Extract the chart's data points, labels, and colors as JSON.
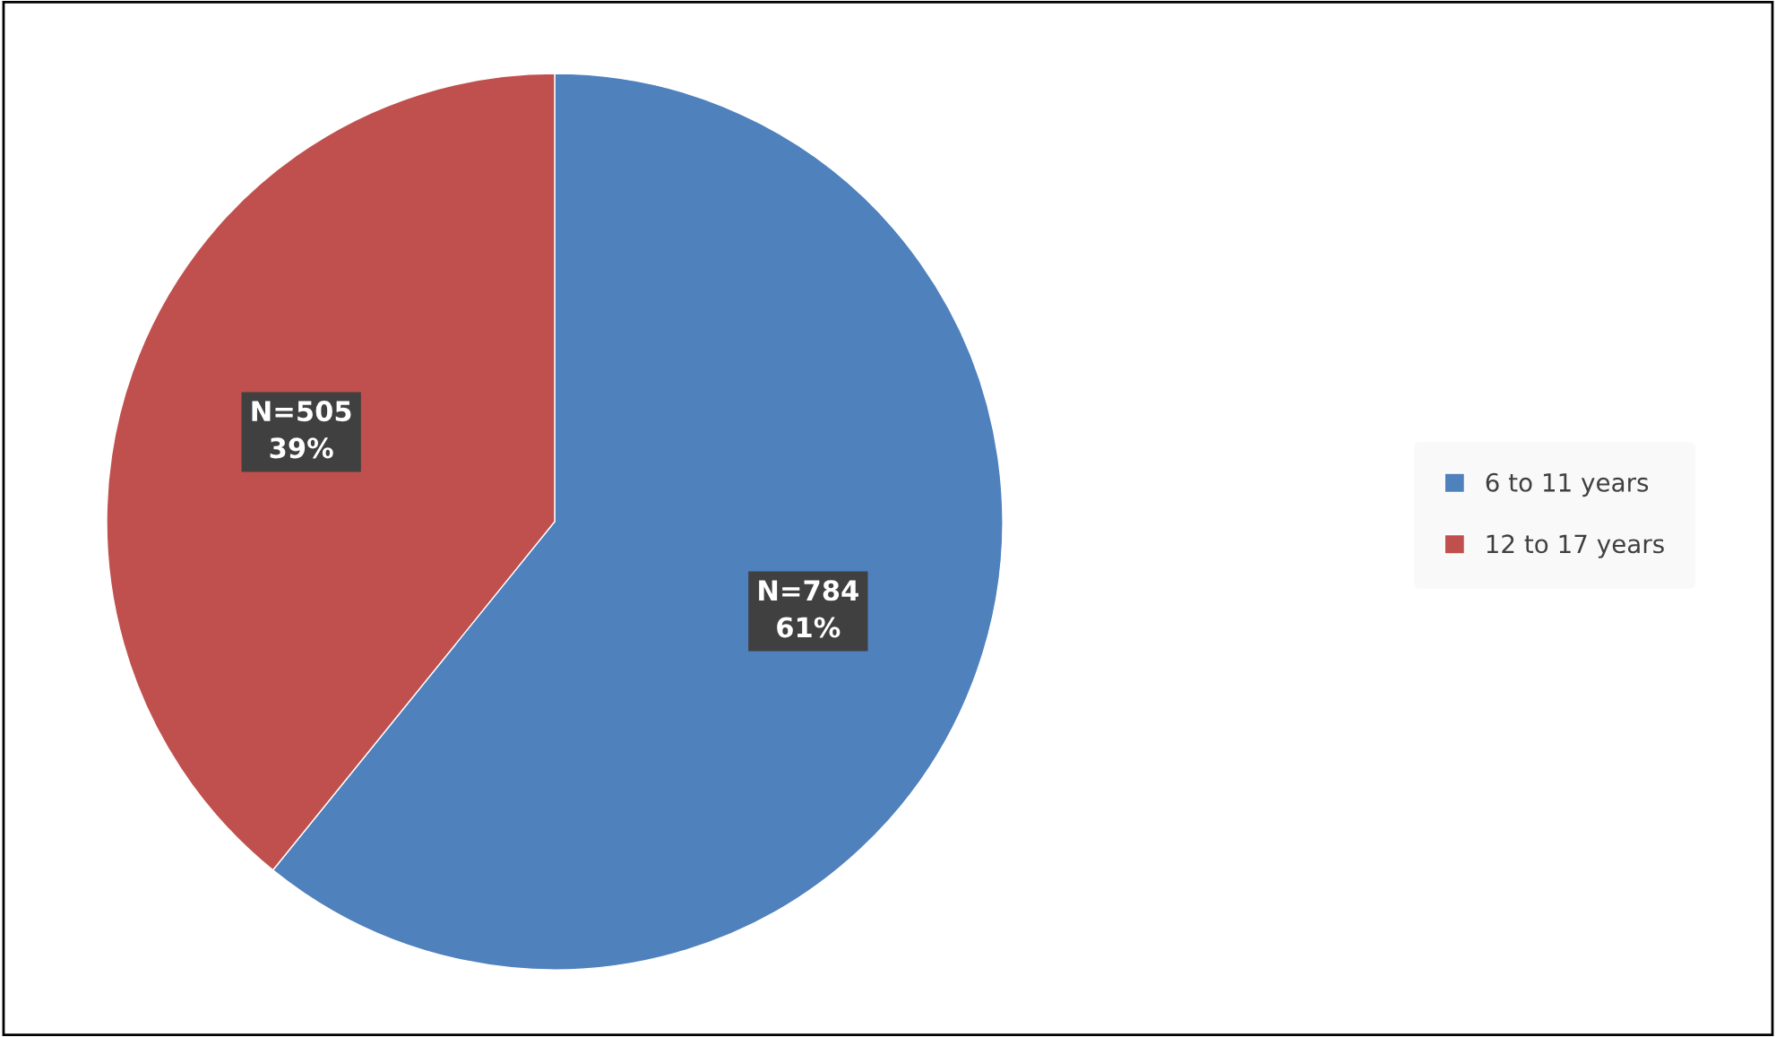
{
  "chart_data": {
    "type": "pie",
    "categories": [
      "6 to 11 years",
      "12 to 17 years"
    ],
    "values": [
      784,
      505
    ],
    "colors": [
      "#4f81bd",
      "#c0504d"
    ],
    "value_labels": [
      "N=784\n61%",
      "N=505\n39%"
    ],
    "legend": "right"
  }
}
